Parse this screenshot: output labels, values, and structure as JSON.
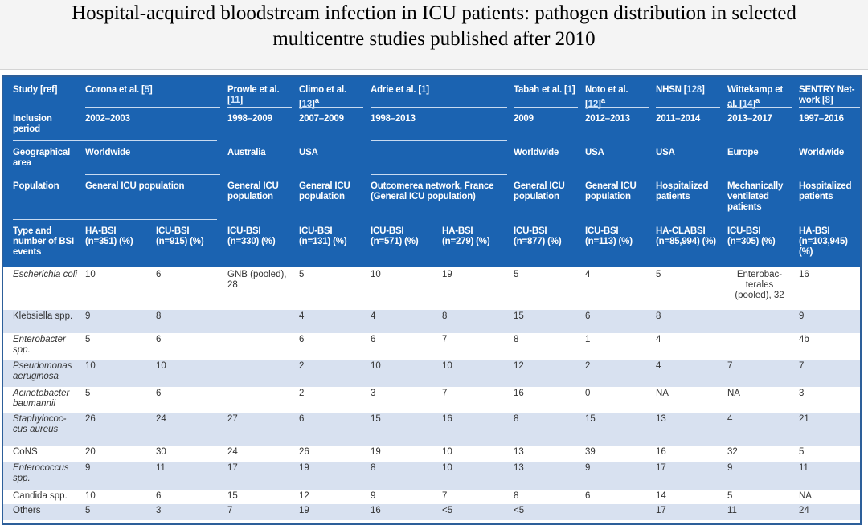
{
  "title": {
    "line1": "Hospital-acquired bloodstream infection in ICU patients: pathogen distribution in selected",
    "line2": "multicentre studies published after 2010"
  },
  "table": {
    "row_labels": {
      "study": "Study [ref]",
      "inclusion": "Inclusion period",
      "geo": "Geographical area",
      "population": "Population",
      "type": "Type and number of BSI events"
    },
    "studies": [
      {
        "name": "Corona et al. [",
        "ref": "5",
        "tail": "]",
        "sup": ""
      },
      {
        "name": "Prowle et al. [",
        "ref": "11",
        "tail": "]",
        "sup": ""
      },
      {
        "name": "Climo et al. [",
        "ref": "13",
        "tail": "]",
        "sup": "a"
      },
      {
        "name": "Adrie et al. [",
        "ref": "1",
        "tail": "]",
        "sup": ""
      },
      {
        "name": "Tabah et al. [",
        "ref": "1",
        "tail": "]",
        "sup": ""
      },
      {
        "name": "Noto et al. [",
        "ref": "12",
        "tail": "]",
        "sup": "a"
      },
      {
        "name": "NHSN [",
        "ref": "128",
        "tail": "]",
        "sup": ""
      },
      {
        "name": "Wittekamp et al. [",
        "ref": "14",
        "tail": "]",
        "sup": "a"
      },
      {
        "name": "SENTRY Net-work [",
        "ref": "8",
        "tail": "]",
        "sup": ""
      }
    ],
    "inclusion": [
      "2002–2003",
      "1998–2009",
      "2007–2009",
      "1998–2013",
      "2009",
      "2012–2013",
      "2011–2014",
      "2013–2017",
      "1997–2016"
    ],
    "geo": [
      "Worldwide",
      "Australia",
      "USA",
      "",
      "Worldwide",
      "USA",
      "USA",
      "Europe",
      "Worldwide"
    ],
    "population": [
      "General ICU population",
      "General ICU population",
      "General ICU population",
      "Outcomerea network, France (General ICU population)",
      "General ICU population",
      "General ICU population",
      "Hospitalized patients",
      "Mechanically ventilated patients",
      "Hospitalized patients"
    ],
    "types": [
      {
        "t": "HA-BSI",
        "n": "(n=351) (%)"
      },
      {
        "t": "ICU-BSI",
        "n": "(n=915) (%)"
      },
      {
        "t": "ICU-BSI",
        "n": "(n=330) (%)"
      },
      {
        "t": "ICU-BSI",
        "n": "(n=131) (%)"
      },
      {
        "t": "ICU-BSI",
        "n": "(n=571) (%)"
      },
      {
        "t": "HA-BSI",
        "n": "(n=279) (%)"
      },
      {
        "t": "ICU-BSI",
        "n": "(n=877) (%)"
      },
      {
        "t": "ICU-BSI",
        "n": "(n=113) (%)"
      },
      {
        "t": "HA-CLABSI",
        "n": "(n=85,994) (%)"
      },
      {
        "t": "ICU-BSI",
        "n": "(n=305) (%)"
      },
      {
        "t": "HA-BSI",
        "n": "(n=103,945) (%)"
      }
    ],
    "pathogens": [
      {
        "name": "Escherichia coli",
        "vals": [
          "10",
          "6",
          "GNB (pooled), 28",
          "5",
          "10",
          "19",
          "5",
          "4",
          "5",
          "Enterobac-terales (pooled), 32",
          "16"
        ]
      },
      {
        "name": "Klebsiella spp.",
        "vals": [
          "9",
          "8",
          "",
          "4",
          "4",
          "8",
          "15",
          "6",
          "8",
          "",
          "9"
        ]
      },
      {
        "name": "Enterobacter spp.",
        "vals": [
          "5",
          "6",
          "",
          "6",
          "6",
          "7",
          "8",
          "1",
          "4",
          "",
          "4b"
        ]
      },
      {
        "name": "Pseudomonas aeruginosa",
        "vals": [
          "10",
          "10",
          "",
          "2",
          "10",
          "10",
          "12",
          "2",
          "4",
          "7",
          "7"
        ]
      },
      {
        "name": "Acinetobacter baumannii",
        "vals": [
          "5",
          "6",
          "",
          "2",
          "3",
          "7",
          "16",
          "0",
          "NA",
          "NA",
          "3"
        ]
      },
      {
        "name": "Staphylococ-cus aureus",
        "vals": [
          "26",
          "24",
          "27",
          "6",
          "15",
          "16",
          "8",
          "15",
          "13",
          "4",
          "21"
        ]
      },
      {
        "name": "CoNS",
        "vals": [
          "20",
          "30",
          "24",
          "26",
          "19",
          "10",
          "13",
          "39",
          "16",
          "32",
          "5"
        ]
      },
      {
        "name": "Enterococcus spp.",
        "vals": [
          "9",
          "11",
          "17",
          "19",
          "8",
          "10",
          "13",
          "9",
          "17",
          "9",
          "11"
        ]
      },
      {
        "name": "Candida spp.",
        "vals": [
          "10",
          "6",
          "15",
          "12",
          "9",
          "7",
          "8",
          "6",
          "14",
          "5",
          "NA"
        ]
      },
      {
        "name": "Others",
        "vals": [
          "5",
          "3",
          "7",
          "19",
          "16",
          "<5",
          "<5",
          "",
          "17",
          "11",
          "24"
        ]
      }
    ]
  }
}
